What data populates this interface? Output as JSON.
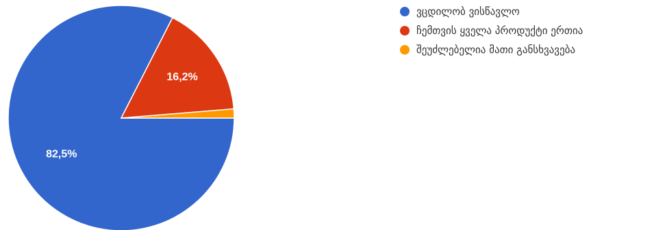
{
  "chart_data": {
    "type": "pie",
    "title": "",
    "series": [
      {
        "name": "ვცდილობ ვისწავლო",
        "value": 82.5,
        "label": "82,5%",
        "color": "#3366cc"
      },
      {
        "name": "ჩემთვის ყველა პროდუქტი ერთია",
        "value": 16.2,
        "label": "16,2%",
        "color": "#dc3912"
      },
      {
        "name": "შეუძლებელია მათი განსხვავება",
        "value": 1.3,
        "label": "",
        "color": "#ff9900"
      }
    ],
    "legend_position": "top-right"
  }
}
